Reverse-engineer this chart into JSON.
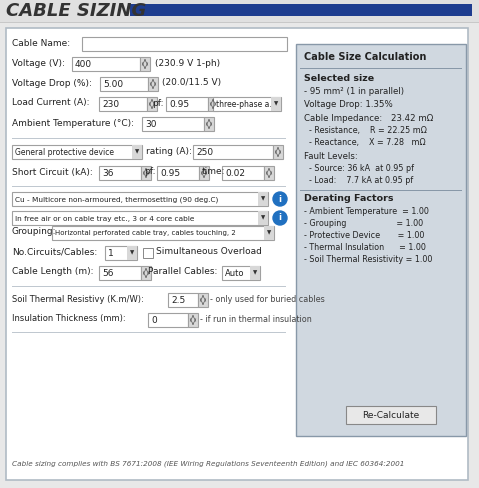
{
  "title": "CABLE SIZING",
  "bg_color": "#e8e8e8",
  "header_bar_color": "#1e3d8f",
  "panel_bg": "#ffffff",
  "right_panel_bg": "#d0d8e0",
  "border_color": "#9aabb8",
  "right_panel_title": "Cable Size Calculation",
  "selected_size_val": "- 95 mm² (1 in parallel)",
  "voltage_drop_result": "Voltage Drop: 1.35%",
  "cable_impedance_val": "23.42 mΩ",
  "resistance_line": "  - Resistance,    R = 22.25 mΩ",
  "reactance_line": "  - Reactance,    X = 7.28   mΩ",
  "fault_source": "  - Source: 36 kA  at 0.95 pf",
  "fault_load": "  - Load:    7.7 kA at 0.95 pf",
  "derating_lines": [
    "- Ambient Temperature  = 1.00",
    "- Grouping                    = 1.00",
    "- Protective Device       = 1.00",
    "- Thermal Insulation      = 1.00",
    "- Soil Thermal Resistivity = 1.00"
  ],
  "recalculate_btn": "Re-Calculate",
  "footer1": "Cable sizing complies with BS 7671:2008 (IEE Wiring Regulations Seventeenth Edition) and IEC 60364:2001"
}
